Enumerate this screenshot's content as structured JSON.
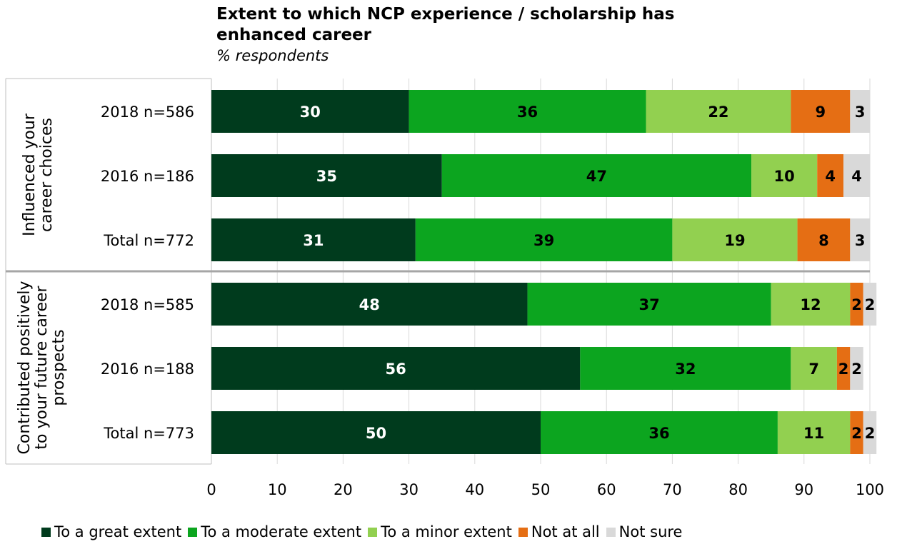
{
  "chart_data": {
    "type": "bar",
    "orientation": "horizontal",
    "stacked": true,
    "title": "Extent to which NCP experience / scholarship has enhanced career",
    "subtitle": "% respondents",
    "xlim": [
      0,
      100
    ],
    "x_ticks": [
      "0",
      "10",
      "20",
      "30",
      "40",
      "50",
      "60",
      "70",
      "80",
      "90",
      "100"
    ],
    "grid": true,
    "legend_position": "bottom",
    "groups": [
      {
        "label": "Influenced your career choices",
        "categories": [
          "2018 n=586",
          "2016 n=186",
          "Total n=772"
        ]
      },
      {
        "label": "Contributed positively to your future career prospects",
        "categories": [
          "2018 n=585",
          "2016 n=188",
          "Total n=773"
        ]
      }
    ],
    "categories": [
      "2018 n=586",
      "2016 n=186",
      "Total n=772",
      "2018 n=585",
      "2016 n=188",
      "Total n=773"
    ],
    "series": [
      {
        "name": "To a great extent",
        "color": "#003b1d",
        "label_color": "#ffffff",
        "values": [
          30,
          35,
          31,
          48,
          56,
          50
        ]
      },
      {
        "name": "To a moderate extent",
        "color": "#0ca51f",
        "label_color": "#000000",
        "values": [
          36,
          47,
          39,
          37,
          32,
          36
        ]
      },
      {
        "name": "To a minor extent",
        "color": "#92d050",
        "label_color": "#000000",
        "values": [
          22,
          10,
          19,
          12,
          7,
          11
        ]
      },
      {
        "name": "Not at all",
        "color": "#e56e14",
        "label_color": "#000000",
        "values": [
          9,
          4,
          8,
          2,
          2,
          2
        ]
      },
      {
        "name": "Not sure",
        "color": "#d9d9d9",
        "label_color": "#000000",
        "values": [
          3,
          4,
          3,
          2,
          2,
          2
        ]
      }
    ]
  }
}
